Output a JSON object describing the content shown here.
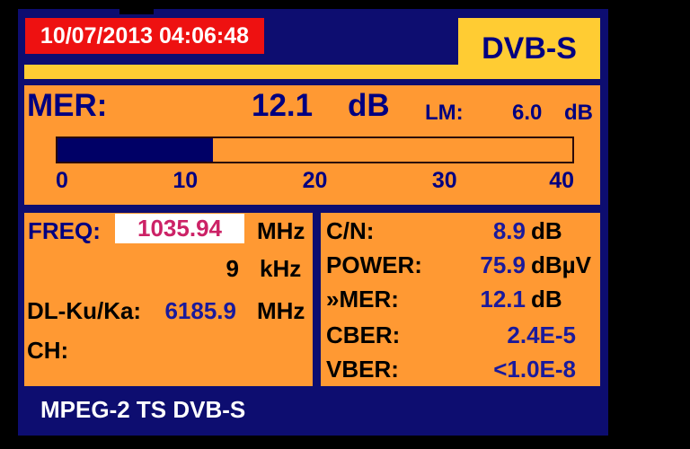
{
  "colors": {
    "background": "#000000",
    "chrome_navy": "#0D0D70",
    "panel_orange": "#FF9933",
    "accent_yellow": "#FFCC33",
    "datetime_red": "#EE1111",
    "label_navy": "#000080",
    "value_blue": "#1A1A9C",
    "text_black": "#000000",
    "freq_value_pink": "#CC2266",
    "freq_box_white": "#FFFFFF"
  },
  "header": {
    "datetime": "10/07/2013 04:06:48",
    "mode": "DVB-S"
  },
  "mer_section": {
    "label": "MER:",
    "value": "12.1",
    "unit": "dB",
    "lm_label": "LM:",
    "lm_value": "6.0",
    "lm_unit": "dB",
    "bar": {
      "min": 0,
      "max": 40,
      "value": 12.1,
      "fill_percent": 30.25,
      "ticks": [
        "0",
        "10",
        "20",
        "30",
        "40"
      ]
    }
  },
  "tuning": {
    "freq_label": "FREQ:",
    "freq_value": "1035.94",
    "freq_unit": "MHz",
    "step_value": "9",
    "step_unit": "kHz",
    "downlink_label": "DL-Ku/Ka:",
    "downlink_value": "6185.9",
    "downlink_unit": "MHz",
    "channel_label": "CH:"
  },
  "measurements": {
    "rows": [
      {
        "label": "C/N:",
        "value": "8.9",
        "unit": "dB"
      },
      {
        "label": "POWER:",
        "value": "75.9",
        "unit": "dBµV"
      },
      {
        "label": "»MER:",
        "value": "12.1",
        "unit": "dB"
      },
      {
        "label": "CBER:",
        "value": "2.4E-5",
        "unit": ""
      },
      {
        "label": "VBER:",
        "value": "<1.0E-8",
        "unit": ""
      }
    ]
  },
  "footer": {
    "status": "MPEG-2 TS DVB-S"
  }
}
